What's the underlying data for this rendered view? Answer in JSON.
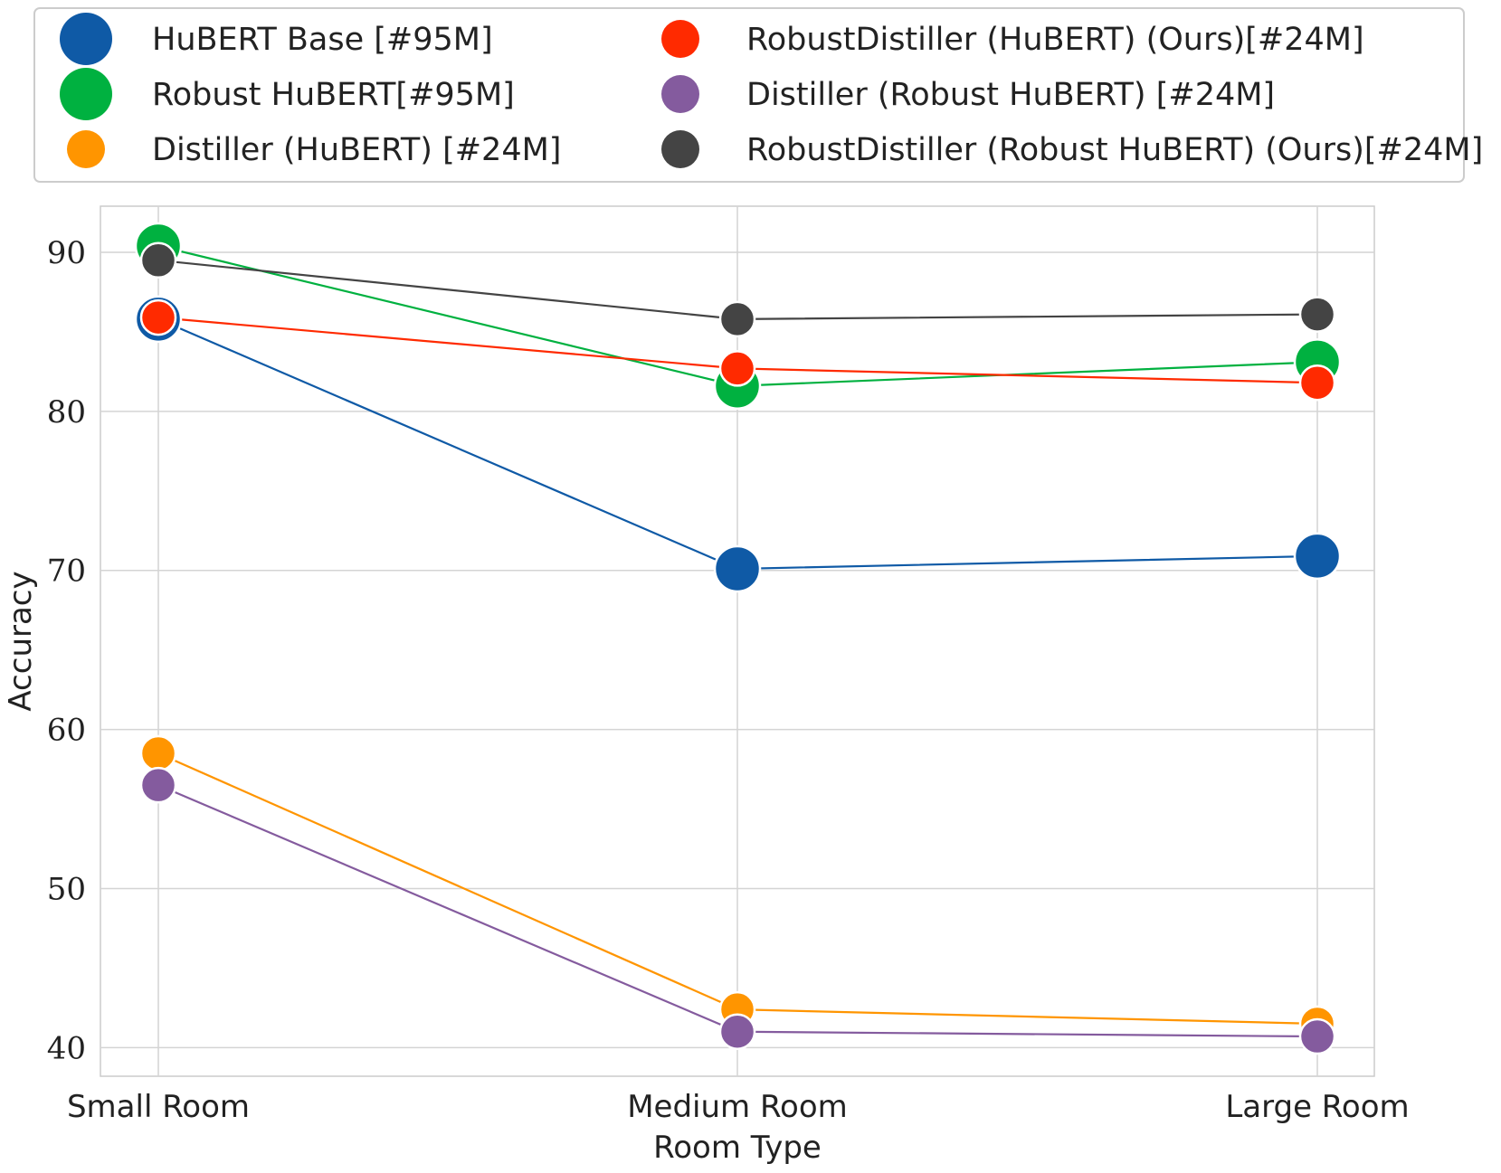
{
  "chart_data": {
    "type": "line",
    "title": "",
    "xlabel": "Room Type",
    "ylabel": "Accuracy",
    "categories": [
      "Small Room",
      "Medium Room",
      "Large Room"
    ],
    "ylim": [
      38.2,
      92.9
    ],
    "yticks": [
      40,
      50,
      60,
      70,
      80,
      90
    ],
    "grid": true,
    "legend_position": "top",
    "series": [
      {
        "name": "HuBERT Base [#95M]",
        "color": "#0f5aa6",
        "values": [
          85.8,
          70.1,
          70.9
        ],
        "marker": "large"
      },
      {
        "name": "Robust HuBERT[#95M]",
        "color": "#00b140",
        "values": [
          90.4,
          81.6,
          83.1
        ],
        "marker": "large"
      },
      {
        "name": "Distiller (HuBERT) [#24M]",
        "color": "#ff9500",
        "values": [
          58.5,
          42.4,
          41.5
        ],
        "marker": "small"
      },
      {
        "name": "RobustDistiller (HuBERT) (Ours)[#24M]",
        "color": "#ff2a00",
        "values": [
          85.9,
          82.7,
          81.8
        ],
        "marker": "small"
      },
      {
        "name": "Distiller (Robust HuBERT) [#24M]",
        "color": "#845b9e",
        "values": [
          56.5,
          41.0,
          40.7
        ],
        "marker": "small"
      },
      {
        "name": "RobustDistiller (Robust HuBERT) (Ours)[#24M]",
        "color": "#444444",
        "values": [
          89.5,
          85.8,
          86.1
        ],
        "marker": "small"
      }
    ]
  }
}
